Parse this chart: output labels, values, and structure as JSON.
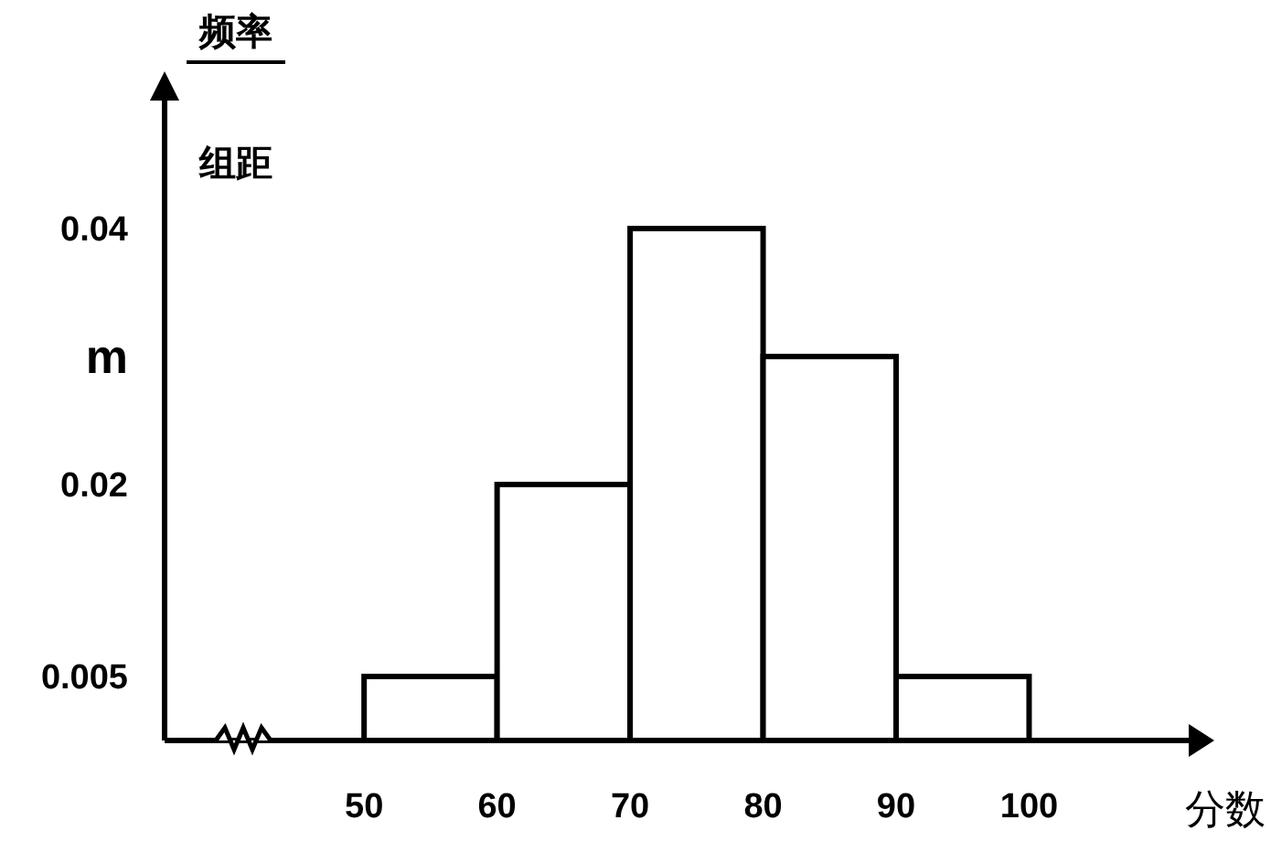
{
  "chart_data": {
    "type": "histogram",
    "xlabel": "分数",
    "ylabel": "频率组距",
    "bins": [
      50,
      60,
      70,
      80,
      90,
      100
    ],
    "values": [
      0.005,
      0.02,
      0.04,
      0.03,
      0.005
    ],
    "color": "#ffffff",
    "xlim": [
      35,
      112
    ],
    "xticks": [
      50,
      60,
      70,
      80,
      90,
      100
    ],
    "ylim": [
      0,
      0.05
    ],
    "yticks": [
      0.005,
      0.02,
      {
        "value": 0.03,
        "label": "m"
      },
      0.04
    ],
    "grid": false
  }
}
